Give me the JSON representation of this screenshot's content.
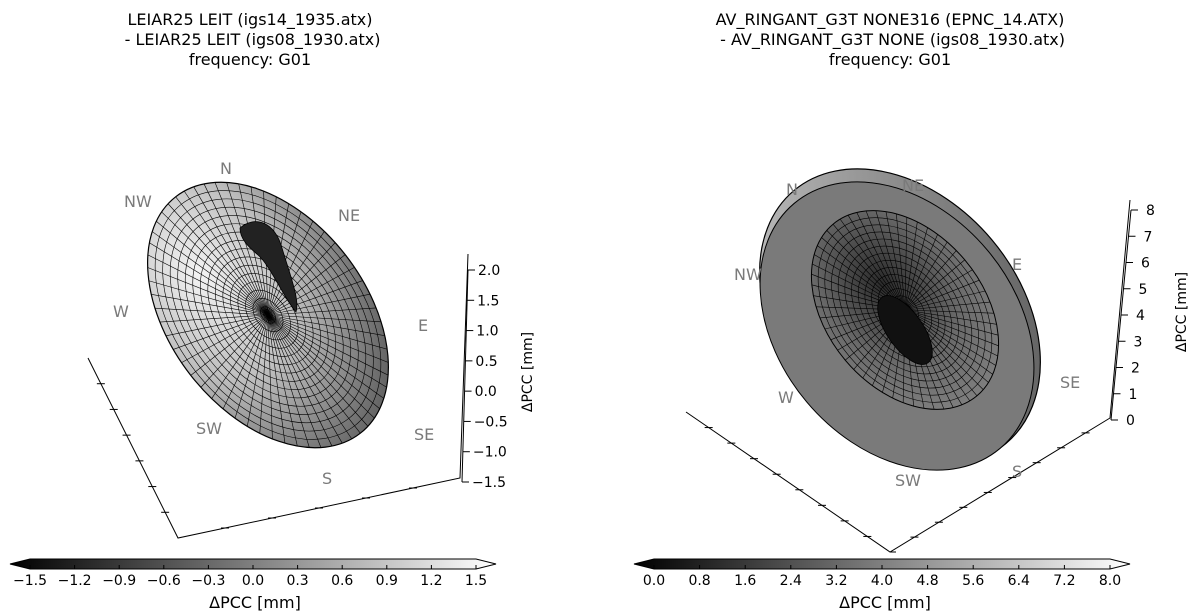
{
  "chart_data": [
    {
      "type": "surface3d",
      "title_lines": [
        "LEIAR25 LEIT (igs14_1935.atx)",
        " - LEIAR25 LEIT (igs08_1930.atx)",
        "frequency: G01"
      ],
      "zlabel": "ΔPCC [mm]",
      "zticks": [
        "2.0",
        "1.5",
        "1.0",
        "0.5",
        "0.0",
        "−0.5",
        "−1.0",
        "−1.5"
      ],
      "zlim": [
        -1.5,
        2.0
      ],
      "directions": [
        "N",
        "NE",
        "E",
        "SE",
        "S",
        "SW",
        "W",
        "NW"
      ],
      "colorbar": {
        "label": "ΔPCC [mm]",
        "ticks": [
          "−1.5",
          "−1.2",
          "−0.9",
          "−0.6",
          "−0.3",
          "0.0",
          "0.3",
          "0.6",
          "0.9",
          "1.2",
          "1.5"
        ],
        "range": [
          -1.5,
          1.5
        ],
        "colormap": "gray",
        "extend": "both"
      }
    },
    {
      "type": "surface3d",
      "title_lines": [
        "AV_RINGANT_G3T NONE316 (EPNC_14.ATX)",
        " - AV_RINGANT_G3T NONE (igs08_1930.atx)",
        "frequency: G01"
      ],
      "zlabel": "ΔPCC [mm]",
      "zticks": [
        "8",
        "7",
        "6",
        "5",
        "4",
        "3",
        "2",
        "1",
        "0"
      ],
      "zlim": [
        0,
        8
      ],
      "directions": [
        "N",
        "NE",
        "E",
        "SE",
        "S",
        "SW",
        "W",
        "NW"
      ],
      "colorbar": {
        "label": "ΔPCC [mm]",
        "ticks": [
          "0.0",
          "0.8",
          "1.6",
          "2.4",
          "3.2",
          "4.0",
          "4.8",
          "5.6",
          "6.4",
          "7.2",
          "8.0"
        ],
        "range": [
          0,
          8
        ],
        "colormap": "gray",
        "extend": "both"
      }
    }
  ]
}
